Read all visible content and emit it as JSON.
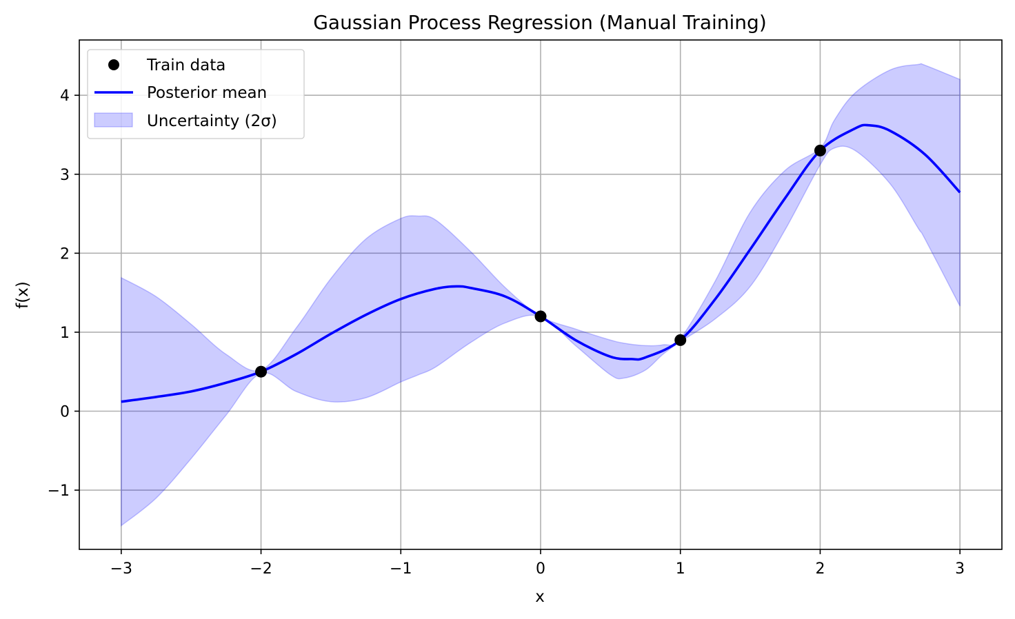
{
  "chart_data": {
    "type": "line",
    "title": "Gaussian Process Regression (Manual Training)",
    "xlabel": "x",
    "ylabel": "f(x)",
    "xlim": [
      -3.3,
      3.3
    ],
    "ylim": [
      -1.75,
      4.7
    ],
    "grid": true,
    "legend_position": "top-left",
    "x_ticks": [
      -3,
      -2,
      -1,
      0,
      1,
      2,
      3
    ],
    "x_tick_labels": [
      "−3",
      "−2",
      "−1",
      "0",
      "1",
      "2",
      "3"
    ],
    "y_ticks": [
      -1,
      0,
      1,
      2,
      3,
      4
    ],
    "y_tick_labels": [
      "−1",
      "0",
      "1",
      "2",
      "3",
      "4"
    ],
    "legend": [
      {
        "label": "Train data",
        "kind": "marker",
        "color": "#000000"
      },
      {
        "label": "Posterior mean",
        "kind": "line",
        "color": "#0000ff"
      },
      {
        "label": "Uncertainty (2σ)",
        "kind": "patch",
        "color": "#0000ff"
      }
    ],
    "train_data": {
      "x": [
        -2,
        0,
        1,
        2
      ],
      "y": [
        0.5,
        1.2,
        0.9,
        3.3
      ]
    },
    "posterior_mean": {
      "x": [
        -3,
        -2.75,
        -2.5,
        -2.25,
        -2,
        -1.75,
        -1.5,
        -1.25,
        -1,
        -0.75,
        -0.6,
        -0.5,
        -0.25,
        0,
        0.25,
        0.5,
        0.65,
        0.75,
        1,
        1.25,
        1.5,
        1.75,
        2,
        2.25,
        2.35,
        2.5,
        2.75,
        3
      ],
      "y": [
        0.12,
        0.18,
        0.25,
        0.36,
        0.5,
        0.72,
        0.98,
        1.22,
        1.42,
        1.55,
        1.58,
        1.56,
        1.45,
        1.2,
        0.9,
        0.69,
        0.66,
        0.68,
        0.9,
        1.42,
        2.05,
        2.7,
        3.3,
        3.58,
        3.62,
        3.55,
        3.25,
        2.77
      ]
    },
    "uncertainty_band": {
      "x": [
        -3,
        -2.75,
        -2.5,
        -2.25,
        -2,
        -1.75,
        -1.5,
        -1.25,
        -1,
        -0.875,
        -0.75,
        -0.5,
        -0.25,
        0,
        0.25,
        0.5,
        0.6,
        0.75,
        0.875,
        1,
        1.25,
        1.5,
        1.75,
        2,
        2.1,
        2.25,
        2.5,
        2.7,
        2.75,
        3
      ],
      "upper": [
        1.69,
        1.45,
        1.1,
        0.72,
        0.52,
        1.05,
        1.68,
        2.18,
        2.44,
        2.47,
        2.42,
        2.02,
        1.56,
        1.2,
        1.04,
        0.9,
        0.86,
        0.83,
        0.84,
        0.92,
        1.65,
        2.52,
        3.05,
        3.33,
        3.68,
        4.03,
        4.32,
        4.39,
        4.38,
        4.2
      ],
      "lower": [
        -1.45,
        -1.1,
        -0.6,
        -0.05,
        0.48,
        0.25,
        0.12,
        0.17,
        0.37,
        0.46,
        0.56,
        0.87,
        1.12,
        1.2,
        0.83,
        0.46,
        0.42,
        0.52,
        0.72,
        0.88,
        1.17,
        1.58,
        2.3,
        3.12,
        3.33,
        3.3,
        2.88,
        2.32,
        2.18,
        1.33
      ]
    },
    "colors": {
      "mean_line": "#0000ff",
      "band_fill": "#0000ff",
      "train_marker": "#000000",
      "grid": "#b0b0b0"
    }
  }
}
